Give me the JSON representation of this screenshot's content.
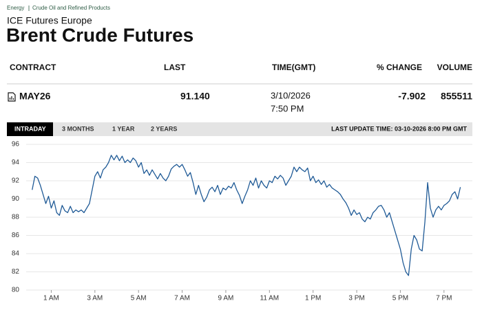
{
  "breadcrumb": [
    "Energy",
    "Crude Oil and Refined Products"
  ],
  "exchange": "ICE Futures Europe",
  "title": "Brent Crude Futures",
  "table": {
    "headers": [
      "CONTRACT",
      "LAST",
      "TIME(GMT)",
      "% CHANGE",
      "VOLUME"
    ],
    "rows": [
      [
        "MAY26",
        "91.140",
        [
          "3/10/2026",
          "7:50 PM"
        ],
        "-7.902",
        "855511"
      ]
    ]
  },
  "tabs": [
    "INTRADAY",
    "3 MONTHS",
    "1 YEAR",
    "2 YEARS"
  ],
  "last_update": "LAST UPDATE TIME: 03-10-2026 8:00 PM GMT",
  "chart_data": {
    "type": "line",
    "color": "#1f5a96",
    "grid": true,
    "xlim": [
      -0.15,
      20.3
    ],
    "ylim": [
      80,
      96
    ],
    "yticks": [
      80,
      82,
      84,
      86,
      88,
      90,
      92,
      94,
      96
    ],
    "xticks": [
      {
        "value": 1,
        "label": "1 AM"
      },
      {
        "value": 3,
        "label": "3 AM"
      },
      {
        "value": 5,
        "label": "5 AM"
      },
      {
        "value": 7,
        "label": "7 AM"
      },
      {
        "value": 9,
        "label": "9 AM"
      },
      {
        "value": 11,
        "label": "11 AM"
      },
      {
        "value": 13,
        "label": "1 PM"
      },
      {
        "value": 15,
        "label": "3 PM"
      },
      {
        "value": 17,
        "label": "5 PM"
      },
      {
        "value": 19,
        "label": "7 PM"
      }
    ],
    "x": [
      0.125,
      0.25,
      0.375,
      0.5,
      0.625,
      0.75,
      0.875,
      1,
      1.125,
      1.25,
      1.375,
      1.5,
      1.625,
      1.75,
      1.875,
      2,
      2.125,
      2.25,
      2.375,
      2.5,
      2.625,
      2.75,
      2.875,
      3,
      3.125,
      3.25,
      3.375,
      3.5,
      3.625,
      3.75,
      3.875,
      4,
      4.125,
      4.25,
      4.375,
      4.5,
      4.625,
      4.75,
      4.875,
      5,
      5.125,
      5.25,
      5.375,
      5.5,
      5.625,
      5.75,
      5.875,
      6,
      6.125,
      6.25,
      6.375,
      6.5,
      6.625,
      6.75,
      6.875,
      7,
      7.125,
      7.25,
      7.375,
      7.5,
      7.625,
      7.75,
      7.875,
      8,
      8.125,
      8.25,
      8.375,
      8.5,
      8.625,
      8.75,
      8.875,
      9,
      9.125,
      9.25,
      9.375,
      9.5,
      9.625,
      9.75,
      9.875,
      10,
      10.125,
      10.25,
      10.375,
      10.5,
      10.625,
      10.75,
      10.875,
      11,
      11.125,
      11.25,
      11.375,
      11.5,
      11.625,
      11.75,
      11.875,
      12,
      12.125,
      12.25,
      12.375,
      12.5,
      12.625,
      12.75,
      12.875,
      13,
      13.125,
      13.25,
      13.375,
      13.5,
      13.625,
      13.75,
      13.875,
      14,
      14.125,
      14.25,
      14.375,
      14.5,
      14.625,
      14.75,
      14.875,
      15,
      15.125,
      15.25,
      15.375,
      15.5,
      15.625,
      15.75,
      15.875,
      16,
      16.125,
      16.25,
      16.375,
      16.5,
      16.625,
      16.75,
      16.875,
      17,
      17.125,
      17.25,
      17.375,
      17.5,
      17.625,
      17.75,
      17.875,
      18,
      18.125,
      18.25,
      18.375,
      18.5,
      18.625,
      18.75,
      18.875,
      19,
      19.125,
      19.25,
      19.375,
      19.5,
      19.625,
      19.75
    ],
    "values": [
      91.0,
      92.5,
      92.3,
      91.5,
      90.5,
      89.5,
      90.3,
      89.0,
      89.8,
      88.5,
      88.2,
      89.3,
      88.7,
      88.5,
      89.2,
      88.5,
      88.8,
      88.6,
      88.8,
      88.5,
      89.0,
      89.5,
      91.0,
      92.5,
      93.0,
      92.3,
      93.2,
      93.5,
      94.0,
      94.8,
      94.3,
      94.8,
      94.2,
      94.7,
      94.0,
      94.3,
      94.0,
      94.5,
      94.2,
      93.5,
      94.0,
      92.8,
      93.2,
      92.6,
      93.2,
      92.7,
      92.2,
      92.8,
      92.3,
      92.0,
      92.5,
      93.3,
      93.6,
      93.8,
      93.5,
      93.8,
      93.2,
      92.5,
      92.9,
      91.8,
      90.5,
      91.5,
      90.5,
      89.7,
      90.2,
      91.0,
      91.3,
      90.8,
      91.5,
      90.5,
      91.2,
      91.0,
      91.4,
      91.2,
      91.8,
      91.0,
      90.4,
      89.5,
      90.3,
      91.0,
      92.0,
      91.5,
      92.3,
      91.2,
      92.0,
      91.5,
      91.2,
      92.0,
      91.8,
      92.5,
      92.2,
      92.6,
      92.3,
      91.5,
      92.0,
      92.5,
      93.5,
      93.0,
      93.5,
      93.2,
      93.0,
      93.4,
      92.0,
      92.5,
      91.8,
      92.1,
      91.6,
      92.0,
      91.3,
      91.6,
      91.2,
      91.0,
      90.8,
      90.5,
      90.0,
      89.6,
      89.0,
      88.2,
      88.8,
      88.3,
      88.5,
      87.8,
      87.5,
      88.0,
      87.8,
      88.5,
      88.8,
      89.2,
      89.3,
      88.8,
      88.0,
      88.5,
      87.5,
      86.5,
      85.5,
      84.5,
      83.0,
      82.0,
      81.6,
      84.5,
      86.0,
      85.5,
      84.5,
      84.3,
      87.5,
      91.8,
      89.0,
      88.0,
      88.8,
      89.2,
      88.8,
      89.3,
      89.5,
      89.8,
      90.5,
      90.8,
      90.0,
      91.3
    ]
  }
}
